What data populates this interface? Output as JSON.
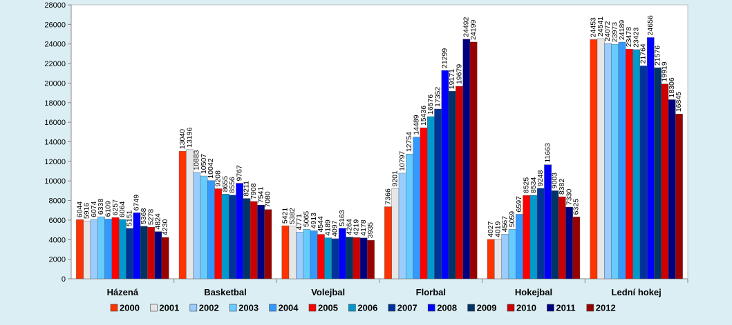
{
  "chart_data": {
    "type": "bar",
    "categories": [
      "Házená",
      "Basketbal",
      "Volejbal",
      "Florbal",
      "Hokejbal",
      "Lední hokej"
    ],
    "series": [
      {
        "name": "2000",
        "color": "#ff3300",
        "values": [
          6044,
          13040,
          5421,
          7366,
          4027,
          24453
        ]
      },
      {
        "name": "2001",
        "color": "#e6e6e6",
        "values": [
          5916,
          13196,
          5382,
          9201,
          4019,
          24541
        ]
      },
      {
        "name": "2002",
        "color": "#99ccff",
        "values": [
          6074,
          10883,
          4771,
          10797,
          4567,
          24072
        ]
      },
      {
        "name": "2003",
        "color": "#66ccff",
        "values": [
          6338,
          10507,
          5065,
          12754,
          5059,
          23973
        ]
      },
      {
        "name": "2004",
        "color": "#3399ff",
        "values": [
          6109,
          10042,
          4913,
          14489,
          6597,
          24189
        ]
      },
      {
        "name": "2005",
        "color": "#ff0000",
        "values": [
          6257,
          9208,
          4544,
          15436,
          8525,
          23478
        ]
      },
      {
        "name": "2006",
        "color": "#0099cc",
        "values": [
          6064,
          8655,
          4189,
          16576,
          8534,
          23423
        ]
      },
      {
        "name": "2007",
        "color": "#003399",
        "values": [
          5151,
          8556,
          4097,
          17352,
          9248,
          21764
        ]
      },
      {
        "name": "2008",
        "color": "#0000ff",
        "values": [
          6749,
          9767,
          5163,
          21299,
          11663,
          24656
        ]
      },
      {
        "name": "2009",
        "color": "#003366",
        "values": [
          5368,
          8211,
          4264,
          19171,
          9003,
          21576
        ]
      },
      {
        "name": "2010",
        "color": "#cc0000",
        "values": [
          5278,
          7908,
          4219,
          19679,
          8382,
          19919
        ]
      },
      {
        "name": "2011",
        "color": "#000080",
        "values": [
          4824,
          7541,
          4178,
          24492,
          7330,
          18306
        ]
      },
      {
        "name": "2012",
        "color": "#990000",
        "values": [
          4230,
          7080,
          3935,
          24199,
          6325,
          16845
        ]
      }
    ],
    "ylim": [
      0,
      28000
    ],
    "yticks": [
      0,
      2000,
      4000,
      6000,
      8000,
      10000,
      12000,
      14000,
      16000,
      18000,
      20000,
      22000,
      24000,
      26000,
      28000
    ]
  }
}
